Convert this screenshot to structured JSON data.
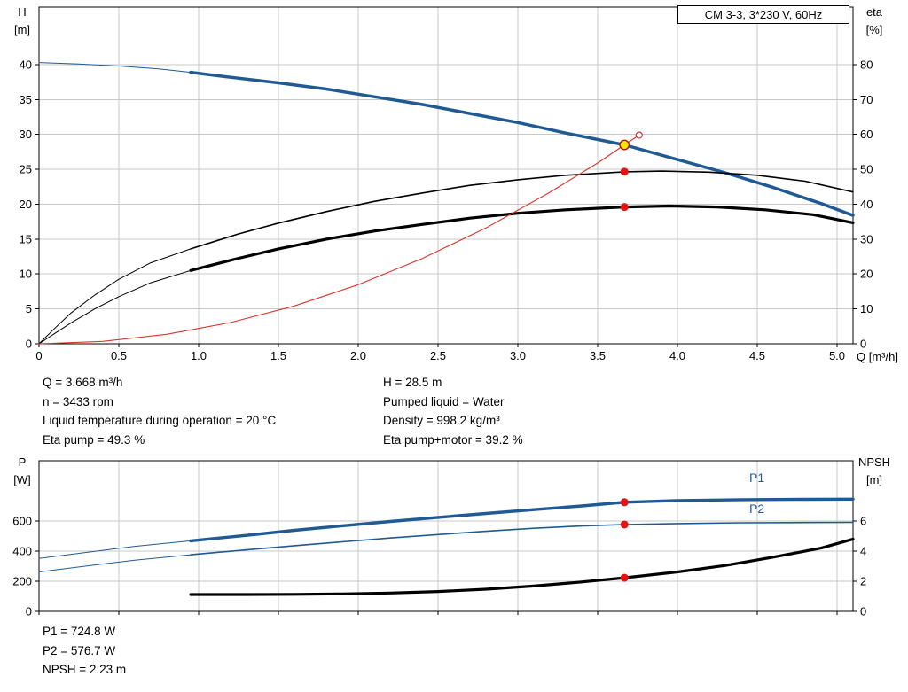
{
  "axis_labels": {
    "h": "H",
    "h_unit": "[m]",
    "eta": "eta",
    "eta_unit": "[%]",
    "q": "Q [m³/h]",
    "p": "P",
    "p_unit": "[W]",
    "npsh": "NPSH",
    "npsh_unit": "[m]"
  },
  "info": {
    "top_left": [
      "Q = 3.668 m³/h",
      "n = 3433 rpm",
      "Liquid temperature during operation = 20 °C",
      "Eta pump = 49.3 %"
    ],
    "top_right": [
      "H = 28.5 m",
      "Pumped liquid = Water",
      "Density = 998.2 kg/m³",
      "Eta pump+motor = 39.2 %"
    ],
    "bottom": [
      "P1 = 724.8 W",
      "P2 = 576.7 W",
      "NPSH = 2.23 m"
    ]
  },
  "colors": {
    "curve_blue": "#205a94",
    "curve_black": "#000000",
    "curve_red": "#d9342b",
    "dot_red": "#e41414",
    "duty_fill": "#ffe50a",
    "duty_stroke": "#b01218",
    "grid": "#c8c8c8",
    "axis": "#000000"
  },
  "chart_data": [
    {
      "id": "hq-eta",
      "type": "line",
      "title": "CM 3-3, 3*230 V, 60Hz",
      "xlabel": "Q [m³/h]",
      "ylabel_left": "H [m]",
      "ylabel_right": "eta [%]",
      "x_range": [
        0,
        5.1
      ],
      "grid_color": "#c8c8c8",
      "x_ticks": [
        {
          "v": 0,
          "label": "0"
        },
        {
          "v": 0.5,
          "label": "0.5"
        },
        {
          "v": 1,
          "label": "1.0"
        },
        {
          "v": 1.5,
          "label": "1.5"
        },
        {
          "v": 2,
          "label": "2.0"
        },
        {
          "v": 2.5,
          "label": "2.5"
        },
        {
          "v": 3,
          "label": "3.0"
        },
        {
          "v": 3.5,
          "label": "3.5"
        },
        {
          "v": 4,
          "label": "4.0"
        },
        {
          "v": 4.5,
          "label": "4.5"
        },
        {
          "v": 5,
          "label": "5.0"
        }
      ],
      "y_left": {
        "range": [
          0,
          48.25
        ],
        "ticks": [
          {
            "v": 0,
            "label": "0"
          },
          {
            "v": 5,
            "label": "5"
          },
          {
            "v": 10,
            "label": "10"
          },
          {
            "v": 15,
            "label": "15"
          },
          {
            "v": 20,
            "label": "20"
          },
          {
            "v": 25,
            "label": "25"
          },
          {
            "v": 30,
            "label": "30"
          },
          {
            "v": 35,
            "label": "35"
          },
          {
            "v": 40,
            "label": "40"
          }
        ]
      },
      "y_right": {
        "range": [
          0,
          96.5
        ],
        "ticks": [
          {
            "v": 0,
            "label": "0"
          },
          {
            "v": 10,
            "label": "10"
          },
          {
            "v": 20,
            "label": "20"
          },
          {
            "v": 30,
            "label": "30"
          },
          {
            "v": 40,
            "label": "40"
          },
          {
            "v": 50,
            "label": "50"
          },
          {
            "v": 60,
            "label": "60"
          },
          {
            "v": 70,
            "label": "70"
          },
          {
            "v": 80,
            "label": "80"
          }
        ]
      },
      "series": [
        {
          "name": "head-lead-in",
          "axis": "left",
          "color": "#205a94",
          "width": 1,
          "points": [
            [
              0,
              40.3
            ],
            [
              0.25,
              40.1
            ],
            [
              0.5,
              39.8
            ],
            [
              0.75,
              39.4
            ],
            [
              0.95,
              38.9
            ]
          ]
        },
        {
          "name": "head",
          "axis": "left",
          "color": "#205a94",
          "width": 3.5,
          "points": [
            [
              0.95,
              38.9
            ],
            [
              1.2,
              38.2
            ],
            [
              1.5,
              37.4
            ],
            [
              1.8,
              36.5
            ],
            [
              2.1,
              35.4
            ],
            [
              2.4,
              34.3
            ],
            [
              2.7,
              33.0
            ],
            [
              3.0,
              31.7
            ],
            [
              3.3,
              30.2
            ],
            [
              3.668,
              28.5
            ],
            [
              4.0,
              26.4
            ],
            [
              4.3,
              24.5
            ],
            [
              4.6,
              22.4
            ],
            [
              4.9,
              20.1
            ],
            [
              5.1,
              18.4
            ]
          ]
        },
        {
          "name": "eta-pump-lead-in",
          "axis": "right",
          "color": "#000000",
          "width": 1,
          "points": [
            [
              0,
              0
            ],
            [
              0.1,
              4.5
            ],
            [
              0.2,
              8.8
            ],
            [
              0.35,
              14
            ],
            [
              0.5,
              18.5
            ],
            [
              0.7,
              23.2
            ],
            [
              0.95,
              27.2
            ]
          ]
        },
        {
          "name": "eta-pump",
          "axis": "right",
          "color": "#000000",
          "width": 1.6,
          "points": [
            [
              0.95,
              27.2
            ],
            [
              1.25,
              31.5
            ],
            [
              1.5,
              34.6
            ],
            [
              1.8,
              37.9
            ],
            [
              2.1,
              40.8
            ],
            [
              2.4,
              43.2
            ],
            [
              2.7,
              45.4
            ],
            [
              3.0,
              47.0
            ],
            [
              3.3,
              48.3
            ],
            [
              3.668,
              49.3
            ],
            [
              3.9,
              49.5
            ],
            [
              4.2,
              49.2
            ],
            [
              4.5,
              48.3
            ],
            [
              4.8,
              46.6
            ],
            [
              5.1,
              43.5
            ]
          ]
        },
        {
          "name": "eta-pump-motor-lead-in",
          "axis": "right",
          "color": "#000000",
          "width": 1,
          "points": [
            [
              0,
              0
            ],
            [
              0.1,
              3
            ],
            [
              0.2,
              6
            ],
            [
              0.35,
              10
            ],
            [
              0.5,
              13.5
            ],
            [
              0.7,
              17.5
            ],
            [
              0.95,
              21.0
            ]
          ]
        },
        {
          "name": "eta-pump-motor",
          "axis": "right",
          "color": "#000000",
          "width": 3.2,
          "points": [
            [
              0.95,
              21.0
            ],
            [
              1.25,
              24.5
            ],
            [
              1.5,
              27.2
            ],
            [
              1.8,
              30.0
            ],
            [
              2.1,
              32.3
            ],
            [
              2.4,
              34.2
            ],
            [
              2.7,
              36.0
            ],
            [
              3.0,
              37.4
            ],
            [
              3.3,
              38.4
            ],
            [
              3.668,
              39.2
            ],
            [
              3.95,
              39.5
            ],
            [
              4.25,
              39.2
            ],
            [
              4.55,
              38.4
            ],
            [
              4.85,
              37.0
            ],
            [
              5.1,
              34.7
            ]
          ]
        },
        {
          "name": "system-curve",
          "axis": "left",
          "color": "#d9342b",
          "width": 1.1,
          "points": [
            [
              0,
              0
            ],
            [
              0.4,
              0.34
            ],
            [
              0.8,
              1.36
            ],
            [
              1.2,
              3.05
            ],
            [
              1.6,
              5.42
            ],
            [
              2.0,
              8.47
            ],
            [
              2.4,
              12.2
            ],
            [
              2.8,
              16.6
            ],
            [
              3.2,
              21.7
            ],
            [
              3.5,
              25.9
            ],
            [
              3.668,
              28.5
            ],
            [
              3.76,
              29.9
            ]
          ]
        }
      ],
      "markers": [
        {
          "name": "requested-duty-ring",
          "x": 3.76,
          "y": 29.9,
          "axis": "left",
          "r": 3.5,
          "fill": "#ffffff",
          "stroke": "#d9342b",
          "stroke_width": 1.2
        },
        {
          "name": "duty-point",
          "x": 3.668,
          "y": 28.5,
          "axis": "left",
          "r": 5.2,
          "fill": "#ffe50a",
          "stroke": "#b01218",
          "stroke_width": 1.4
        },
        {
          "name": "eta-pump-dot",
          "x": 3.668,
          "y": 49.3,
          "axis": "right",
          "r": 4.5,
          "fill": "#e41414"
        },
        {
          "name": "eta-pump-motor-dot",
          "x": 3.668,
          "y": 39.2,
          "axis": "right",
          "r": 4.5,
          "fill": "#e41414"
        }
      ],
      "curve_labels": []
    },
    {
      "id": "power-npsh",
      "type": "line",
      "title": "",
      "xlabel": "",
      "ylabel_left": "P [W]",
      "ylabel_right": "NPSH [m]",
      "x_range": [
        0,
        5.1
      ],
      "grid_color": "#c8c8c8",
      "x_ticks": [
        {
          "v": 0,
          "label": ""
        },
        {
          "v": 0.5,
          "label": ""
        },
        {
          "v": 1,
          "label": ""
        },
        {
          "v": 1.5,
          "label": ""
        },
        {
          "v": 2,
          "label": ""
        },
        {
          "v": 2.5,
          "label": ""
        },
        {
          "v": 3,
          "label": ""
        },
        {
          "v": 3.5,
          "label": ""
        },
        {
          "v": 4,
          "label": ""
        },
        {
          "v": 4.5,
          "label": ""
        },
        {
          "v": 5,
          "label": ""
        }
      ],
      "y_left": {
        "range": [
          0,
          1000
        ],
        "ticks": [
          {
            "v": 0,
            "label": "0"
          },
          {
            "v": 200,
            "label": "200"
          },
          {
            "v": 400,
            "label": "400"
          },
          {
            "v": 600,
            "label": "600"
          }
        ]
      },
      "y_right": {
        "range": [
          0,
          10
        ],
        "ticks": [
          {
            "v": 0,
            "label": "0"
          },
          {
            "v": 2,
            "label": "2"
          },
          {
            "v": 4,
            "label": "4"
          },
          {
            "v": 6,
            "label": "6"
          }
        ]
      },
      "series": [
        {
          "name": "p1-lead-in",
          "axis": "left",
          "color": "#205a94",
          "width": 1,
          "points": [
            [
              0,
              352
            ],
            [
              0.3,
              392
            ],
            [
              0.6,
              432
            ],
            [
              0.95,
              468
            ]
          ]
        },
        {
          "name": "p1",
          "axis": "left",
          "color": "#205a94",
          "width": 3.4,
          "points": [
            [
              0.95,
              468
            ],
            [
              1.3,
              505
            ],
            [
              1.6,
              538
            ],
            [
              1.9,
              568
            ],
            [
              2.2,
              597
            ],
            [
              2.5,
              624
            ],
            [
              2.8,
              650
            ],
            [
              3.1,
              675
            ],
            [
              3.4,
              700
            ],
            [
              3.668,
              724.8
            ],
            [
              4.0,
              736
            ],
            [
              4.4,
              742
            ],
            [
              4.8,
              744
            ],
            [
              5.1,
              745
            ]
          ]
        },
        {
          "name": "p2-lead-in",
          "axis": "left",
          "color": "#205a94",
          "width": 1,
          "points": [
            [
              0,
              262
            ],
            [
              0.3,
              302
            ],
            [
              0.6,
              340
            ],
            [
              0.95,
              376
            ]
          ]
        },
        {
          "name": "p2",
          "axis": "left",
          "color": "#205a94",
          "width": 1.6,
          "points": [
            [
              0.95,
              376
            ],
            [
              1.3,
              408
            ],
            [
              1.6,
              436
            ],
            [
              1.9,
              462
            ],
            [
              2.2,
              487
            ],
            [
              2.5,
              510
            ],
            [
              2.8,
              532
            ],
            [
              3.1,
              552
            ],
            [
              3.4,
              567
            ],
            [
              3.668,
              576.7
            ],
            [
              4.0,
              583
            ],
            [
              4.4,
              588
            ],
            [
              4.8,
              590
            ],
            [
              5.1,
              591
            ]
          ]
        },
        {
          "name": "npsh",
          "axis": "right",
          "color": "#000000",
          "width": 3.2,
          "points": [
            [
              0.95,
              1.12
            ],
            [
              1.3,
              1.12
            ],
            [
              1.6,
              1.13
            ],
            [
              1.9,
              1.16
            ],
            [
              2.2,
              1.22
            ],
            [
              2.5,
              1.32
            ],
            [
              2.8,
              1.47
            ],
            [
              3.1,
              1.68
            ],
            [
              3.4,
              1.95
            ],
            [
              3.668,
              2.23
            ],
            [
              4.0,
              2.62
            ],
            [
              4.3,
              3.05
            ],
            [
              4.6,
              3.6
            ],
            [
              4.9,
              4.2
            ],
            [
              5.1,
              4.8
            ]
          ]
        }
      ],
      "markers": [
        {
          "name": "p1-dot",
          "x": 3.668,
          "y": 724.8,
          "axis": "left",
          "r": 4.5,
          "fill": "#e41414"
        },
        {
          "name": "p2-dot",
          "x": 3.668,
          "y": 576.7,
          "axis": "left",
          "r": 4.5,
          "fill": "#e41414"
        },
        {
          "name": "npsh-dot",
          "x": 3.668,
          "y": 2.23,
          "axis": "right",
          "r": 4.5,
          "fill": "#e41414"
        }
      ],
      "curve_labels": [
        {
          "text": "P1",
          "x": 4.45,
          "y": 858,
          "axis": "left",
          "color": "#205a94"
        },
        {
          "text": "P2",
          "x": 4.45,
          "y": 652,
          "axis": "left",
          "color": "#205a94"
        }
      ]
    }
  ]
}
